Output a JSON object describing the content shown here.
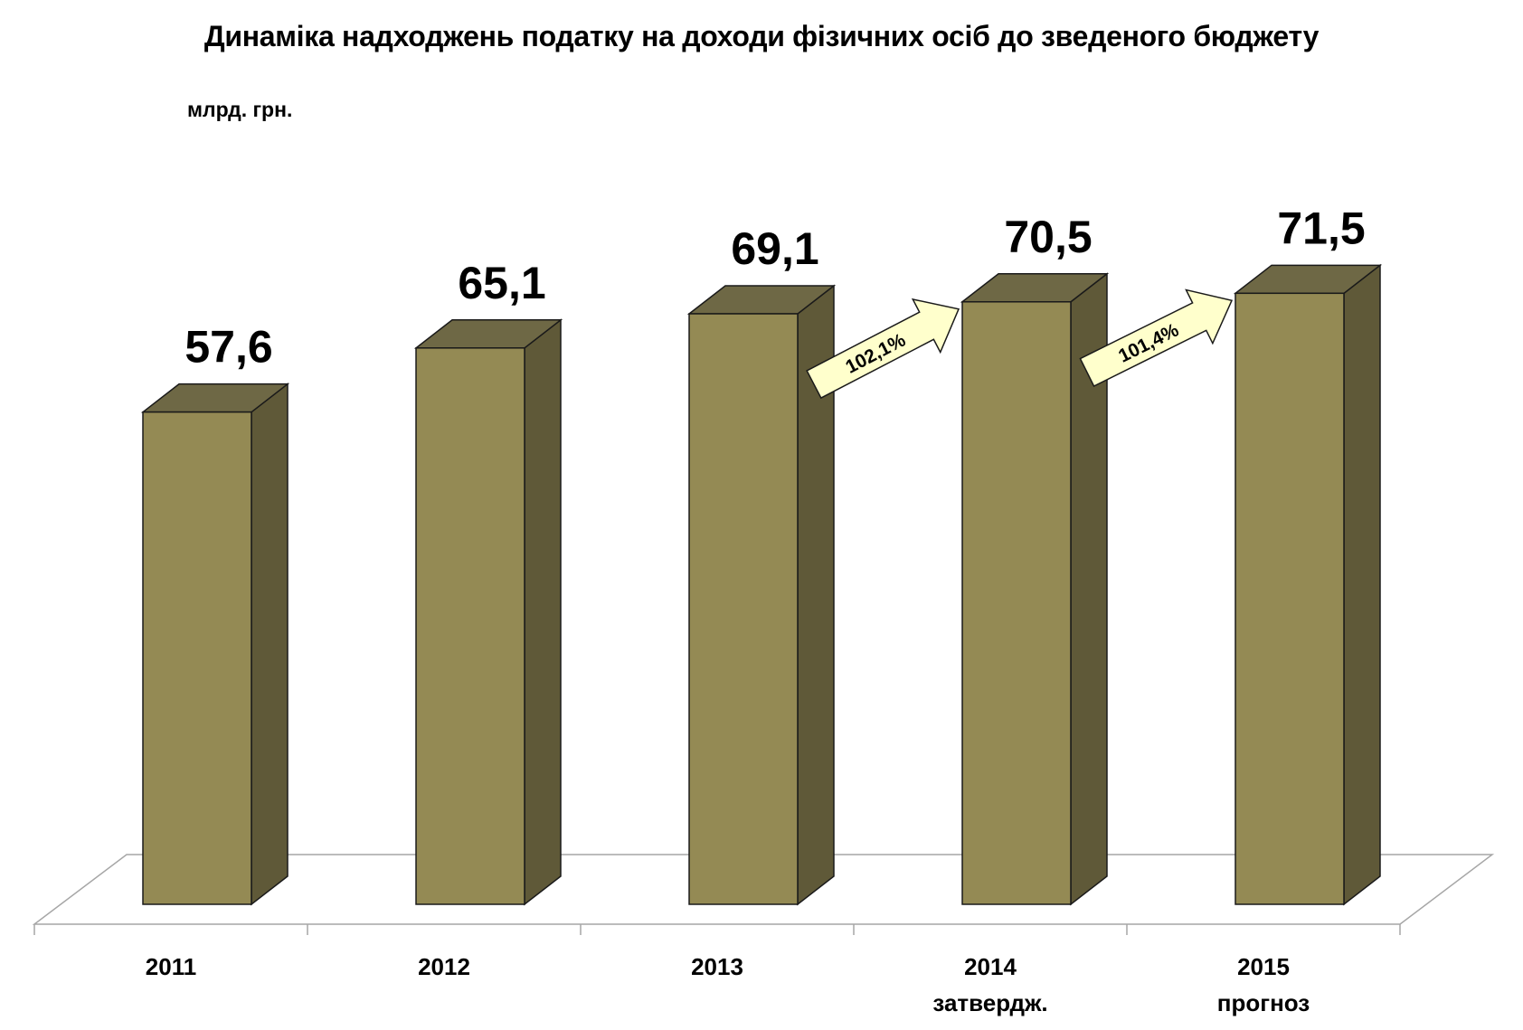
{
  "chart_data": {
    "type": "bar",
    "title": "Динаміка надходжень податку на доходи фізичних осіб до зведеного бюджету",
    "unit_label": "млрд. грн.",
    "categories": [
      {
        "label": "2011",
        "sublabel": ""
      },
      {
        "label": "2012",
        "sublabel": ""
      },
      {
        "label": "2013",
        "sublabel": ""
      },
      {
        "label": "2014",
        "sublabel": "затвердж."
      },
      {
        "label": "2015",
        "sublabel": "прогноз"
      }
    ],
    "values": [
      57.6,
      65.1,
      69.1,
      70.5,
      71.5
    ],
    "value_labels": [
      "57,6",
      "65,1",
      "69,1",
      "70,5",
      "71,5"
    ],
    "ylim": [
      0,
      80
    ],
    "grid": false,
    "legend": "none",
    "style": "3d-columns",
    "annotations": [
      {
        "from": 2,
        "to": 3,
        "text": "102,1%"
      },
      {
        "from": 3,
        "to": 4,
        "text": "101,4%"
      }
    ],
    "colors": {
      "bar_front": "#948A54",
      "bar_side": "#5F5938",
      "bar_top": "#6E6845",
      "arrow_fill": "#FFFFCC",
      "floor_line": "#A6A6A6"
    }
  }
}
